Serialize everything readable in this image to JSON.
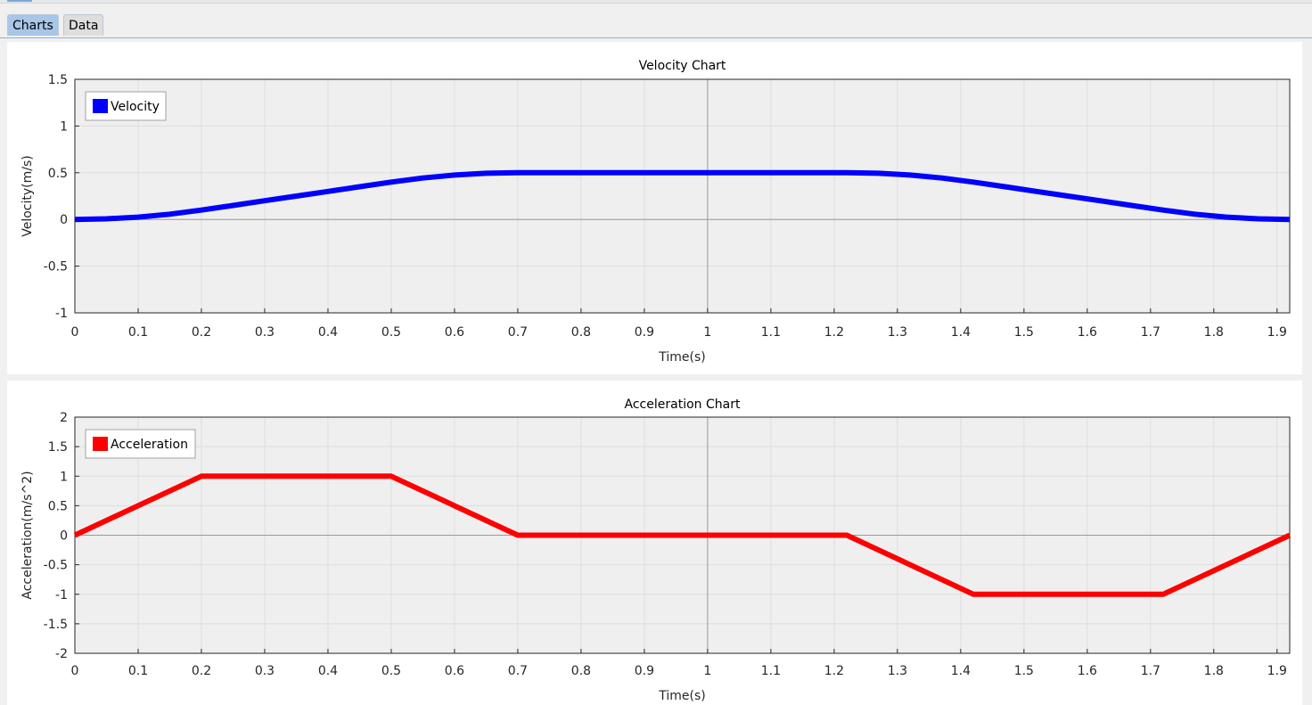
{
  "tabs": [
    {
      "label": "Charts",
      "active": true
    },
    {
      "label": "Data",
      "active": false
    }
  ],
  "chart_data": [
    {
      "type": "line",
      "title": "Velocity Chart",
      "xlabel": "Time(s)",
      "ylabel": "Velocity(m/s)",
      "xlim": [
        0,
        1.92
      ],
      "ylim": [
        -1,
        1.5
      ],
      "xticks": [
        0,
        0.1,
        0.2,
        0.3,
        0.4,
        0.5,
        0.6,
        0.7,
        0.8,
        0.9,
        1,
        1.1,
        1.2,
        1.3,
        1.4,
        1.5,
        1.6,
        1.7,
        1.8,
        1.9
      ],
      "yticks": [
        -1,
        -0.5,
        0,
        0.5,
        1,
        1.5
      ],
      "grid": true,
      "legend_position": "top-left",
      "series": [
        {
          "name": "Velocity",
          "color": "#0000ff",
          "x": [
            0,
            0.05,
            0.1,
            0.15,
            0.2,
            0.25,
            0.3,
            0.35,
            0.4,
            0.45,
            0.5,
            0.55,
            0.6,
            0.65,
            0.7,
            0.8,
            0.9,
            1.0,
            1.1,
            1.2,
            1.22,
            1.27,
            1.32,
            1.37,
            1.42,
            1.47,
            1.52,
            1.57,
            1.62,
            1.67,
            1.72,
            1.77,
            1.82,
            1.87,
            1.92
          ],
          "y": [
            0,
            0.0063,
            0.025,
            0.056,
            0.1,
            0.15,
            0.2,
            0.25,
            0.3,
            0.35,
            0.4,
            0.4438,
            0.475,
            0.4938,
            0.5,
            0.5,
            0.5,
            0.5,
            0.5,
            0.5,
            0.5,
            0.4938,
            0.475,
            0.4438,
            0.4,
            0.35,
            0.3,
            0.25,
            0.2,
            0.15,
            0.1,
            0.056,
            0.025,
            0.0063,
            0
          ]
        }
      ]
    },
    {
      "type": "line",
      "title": "Acceleration Chart",
      "xlabel": "Time(s)",
      "ylabel": "Acceleration(m/s^2)",
      "xlim": [
        0,
        1.92
      ],
      "ylim": [
        -2,
        2
      ],
      "xticks": [
        0,
        0.1,
        0.2,
        0.3,
        0.4,
        0.5,
        0.6,
        0.7,
        0.8,
        0.9,
        1,
        1.1,
        1.2,
        1.3,
        1.4,
        1.5,
        1.6,
        1.7,
        1.8,
        1.9
      ],
      "yticks": [
        -2,
        -1.5,
        -1,
        -0.5,
        0,
        0.5,
        1,
        1.5,
        2
      ],
      "grid": true,
      "legend_position": "top-left",
      "series": [
        {
          "name": "Acceleration",
          "color": "#ff0000",
          "x": [
            0,
            0.2,
            0.5,
            0.7,
            1.22,
            1.42,
            1.72,
            1.92
          ],
          "y": [
            0,
            1,
            1,
            0,
            0,
            -1,
            -1,
            0
          ]
        }
      ]
    }
  ]
}
